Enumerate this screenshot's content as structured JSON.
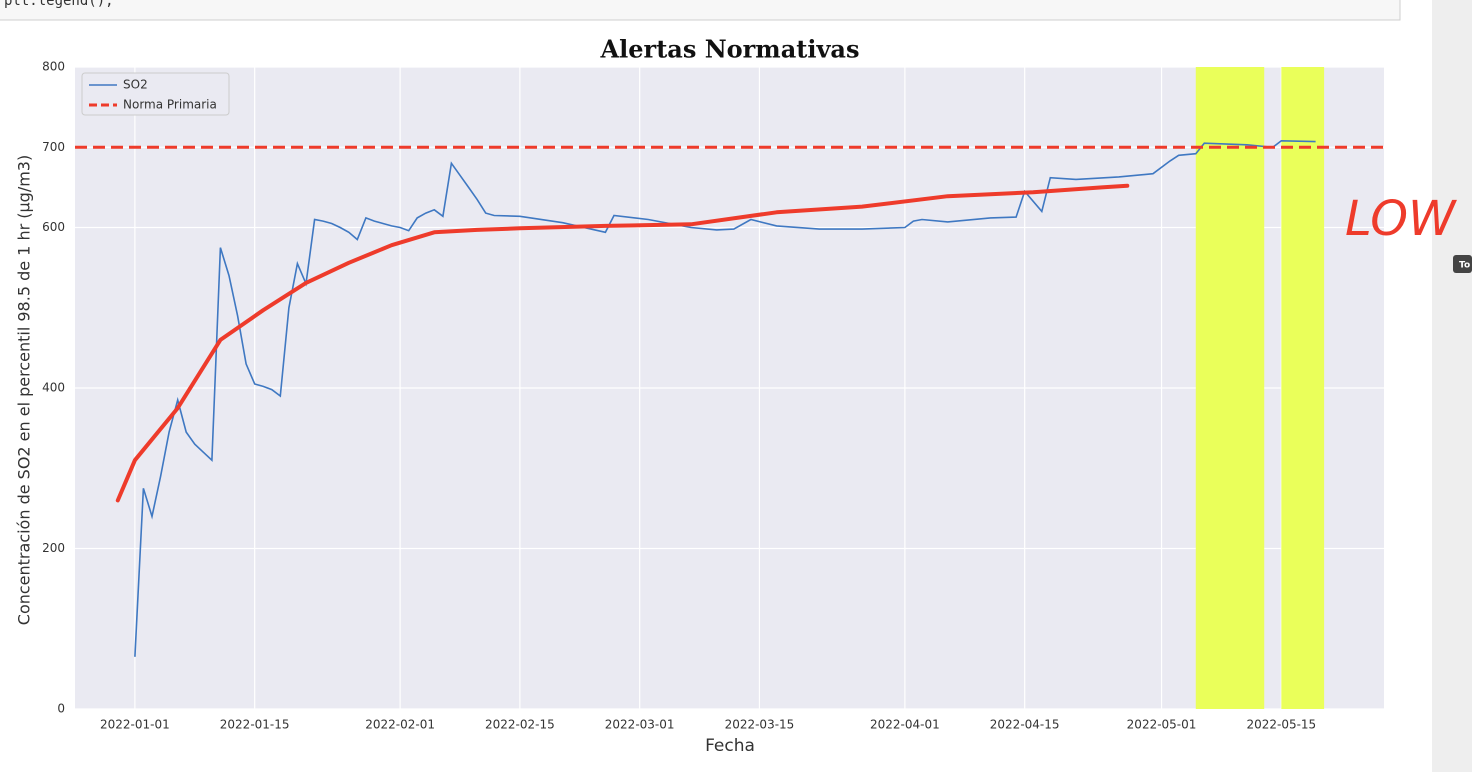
{
  "code_line": "plt.legend();",
  "side_badge": "To",
  "chart_data": {
    "type": "line",
    "title": "Alertas Normativas",
    "x_label": "Fecha",
    "y_label": "Concentración de SO2 en el percentil 98.5 de 1 hr (µg/m3)",
    "xlim": [
      "2021-12-25",
      "2022-05-27"
    ],
    "xticks": [
      "2022-01-01",
      "2022-01-15",
      "2022-02-01",
      "2022-02-15",
      "2022-03-01",
      "2022-03-15",
      "2022-04-01",
      "2022-04-15",
      "2022-05-01",
      "2022-05-15"
    ],
    "ylim": [
      0,
      800
    ],
    "yticks": [
      0,
      200,
      400,
      600,
      700,
      800
    ],
    "grid": true,
    "legend": "upper left",
    "series": [
      {
        "name": "SO2",
        "color": "#3f78c2",
        "x": [
          "2022-01-01",
          "2022-01-02",
          "2022-01-03",
          "2022-01-04",
          "2022-01-05",
          "2022-01-06",
          "2022-01-07",
          "2022-01-08",
          "2022-01-09",
          "2022-01-10",
          "2022-01-11",
          "2022-01-12",
          "2022-01-13",
          "2022-01-14",
          "2022-01-15",
          "2022-01-16",
          "2022-01-17",
          "2022-01-18",
          "2022-01-19",
          "2022-01-20",
          "2022-01-21",
          "2022-01-22",
          "2022-01-23",
          "2022-01-24",
          "2022-01-25",
          "2022-01-26",
          "2022-01-27",
          "2022-01-28",
          "2022-01-29",
          "2022-01-30",
          "2022-01-31",
          "2022-02-01",
          "2022-02-02",
          "2022-02-03",
          "2022-02-04",
          "2022-02-05",
          "2022-02-06",
          "2022-02-07",
          "2022-02-08",
          "2022-02-09",
          "2022-02-10",
          "2022-02-11",
          "2022-02-12",
          "2022-02-15",
          "2022-02-20",
          "2022-02-25",
          "2022-02-26",
          "2022-03-02",
          "2022-03-07",
          "2022-03-10",
          "2022-03-12",
          "2022-03-14",
          "2022-03-17",
          "2022-03-22",
          "2022-03-27",
          "2022-04-01",
          "2022-04-02",
          "2022-04-03",
          "2022-04-06",
          "2022-04-11",
          "2022-04-14",
          "2022-04-15",
          "2022-04-17",
          "2022-04-18",
          "2022-04-21",
          "2022-04-26",
          "2022-04-30",
          "2022-05-02",
          "2022-05-03",
          "2022-05-05",
          "2022-05-06",
          "2022-05-11",
          "2022-05-14",
          "2022-05-15",
          "2022-05-19"
        ],
        "values": [
          65,
          275,
          240,
          290,
          345,
          385,
          345,
          330,
          320,
          310,
          575,
          540,
          490,
          430,
          405,
          402,
          398,
          390,
          500,
          555,
          530,
          610,
          608,
          605,
          600,
          594,
          585,
          612,
          608,
          605,
          602,
          600,
          596,
          612,
          618,
          622,
          614,
          680,
          665,
          650,
          635,
          618,
          615,
          614,
          606,
          594,
          615,
          610,
          600,
          597,
          598,
          610,
          602,
          598,
          598,
          600,
          608,
          610,
          607,
          612,
          613,
          645,
          620,
          662,
          660,
          663,
          667,
          683,
          690,
          692,
          705,
          703,
          700,
          708,
          707
        ]
      },
      {
        "name": "Norma Primaria",
        "color": "#ee3b2b",
        "hline": 700,
        "dashed": true
      }
    ],
    "highlight_color": "#eaff5a",
    "highlight_spans": [
      [
        "2022-05-05",
        "2022-05-13"
      ],
      [
        "2022-05-15",
        "2022-05-20"
      ]
    ],
    "ink_color": "#ee3b2b",
    "ink_text": "LOW",
    "ink_curve": {
      "x": [
        "2021-12-30",
        "2022-01-01",
        "2022-01-06",
        "2022-01-11",
        "2022-01-16",
        "2022-01-21",
        "2022-01-26",
        "2022-01-31",
        "2022-02-05",
        "2022-02-10",
        "2022-02-15",
        "2022-02-25",
        "2022-03-07",
        "2022-03-17",
        "2022-03-27",
        "2022-04-06",
        "2022-04-16",
        "2022-04-24",
        "2022-04-27"
      ],
      "values": [
        260,
        310,
        375,
        460,
        497,
        531,
        556,
        578,
        594,
        597,
        599,
        602,
        604,
        619,
        626,
        639,
        644,
        650,
        652
      ]
    }
  }
}
